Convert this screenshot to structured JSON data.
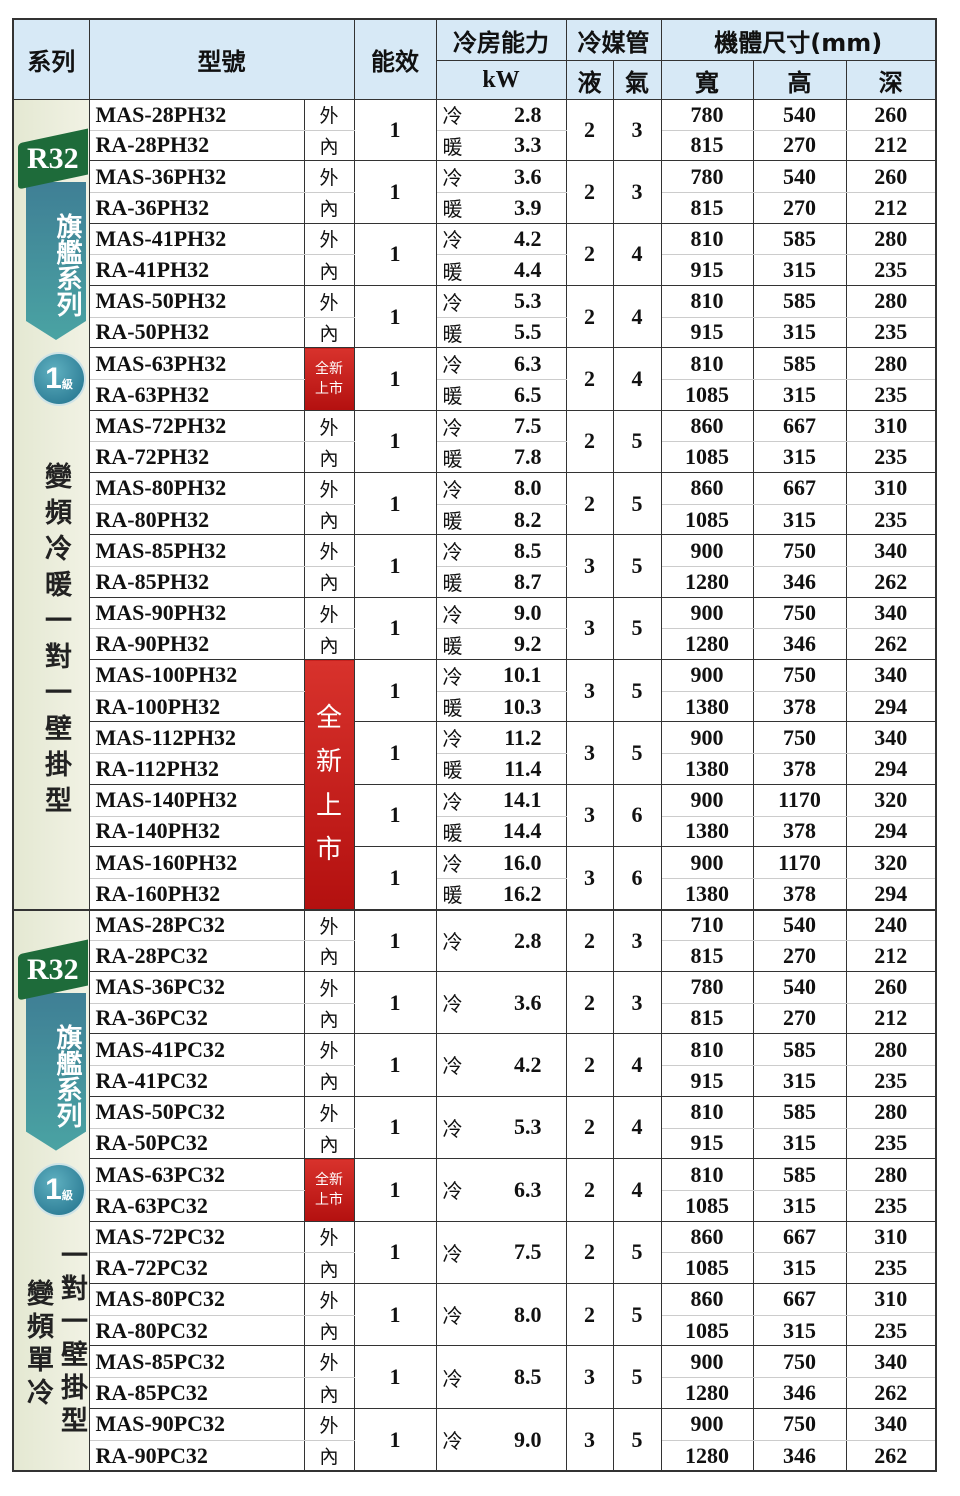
{
  "header": {
    "series": "系列",
    "model": "型號",
    "efficiency": "能效",
    "capacity": "冷房能力",
    "capacity_unit": "kW",
    "pipe": "冷媒管",
    "pipe_liquid": "液",
    "pipe_gas": "氣",
    "dimensions": "機體尺寸(mm)",
    "width": "寬",
    "height": "高",
    "depth": "深"
  },
  "labels": {
    "outdoor": "外",
    "indoor": "內",
    "cool": "冷",
    "heat": "暖",
    "new_badge": "全新上市",
    "new_badge_small": [
      "全新",
      "上市"
    ],
    "new_badge_big": [
      "全",
      "新",
      "上",
      "市"
    ]
  },
  "colors": {
    "header_bg": "#d7e9f6",
    "badge_red": "#c8201c",
    "ribbon_green": "#1e6b3a",
    "banner_teal": "#3f8f9f"
  },
  "sections": [
    {
      "refrigerant": "R32",
      "series_name": "旗艦系列",
      "grade": "1",
      "grade_unit": "級",
      "type_columns": [
        "變頻冷暖一對一壁掛型"
      ],
      "heat_pump": true,
      "rows": [
        {
          "out": "MAS-28PH32",
          "in": "RA-28PH32",
          "eff": "1",
          "cool": "2.8",
          "heat": "3.3",
          "liquid": "2",
          "gas": "3",
          "dim_out": [
            "780",
            "540",
            "260"
          ],
          "dim_in": [
            "815",
            "270",
            "212"
          ]
        },
        {
          "out": "MAS-36PH32",
          "in": "RA-36PH32",
          "eff": "1",
          "cool": "3.6",
          "heat": "3.9",
          "liquid": "2",
          "gas": "3",
          "dim_out": [
            "780",
            "540",
            "260"
          ],
          "dim_in": [
            "815",
            "270",
            "212"
          ]
        },
        {
          "out": "MAS-41PH32",
          "in": "RA-41PH32",
          "eff": "1",
          "cool": "4.2",
          "heat": "4.4",
          "liquid": "2",
          "gas": "4",
          "dim_out": [
            "810",
            "585",
            "280"
          ],
          "dim_in": [
            "915",
            "315",
            "235"
          ]
        },
        {
          "out": "MAS-50PH32",
          "in": "RA-50PH32",
          "eff": "1",
          "cool": "5.3",
          "heat": "5.5",
          "liquid": "2",
          "gas": "4",
          "dim_out": [
            "810",
            "585",
            "280"
          ],
          "dim_in": [
            "915",
            "315",
            "235"
          ]
        },
        {
          "out": "MAS-63PH32",
          "in": "RA-63PH32",
          "eff": "1",
          "cool": "6.3",
          "heat": "6.5",
          "liquid": "2",
          "gas": "4",
          "dim_out": [
            "810",
            "585",
            "280"
          ],
          "dim_in": [
            "1085",
            "315",
            "235"
          ],
          "badge": "small"
        },
        {
          "out": "MAS-72PH32",
          "in": "RA-72PH32",
          "eff": "1",
          "cool": "7.5",
          "heat": "7.8",
          "liquid": "2",
          "gas": "5",
          "dim_out": [
            "860",
            "667",
            "310"
          ],
          "dim_in": [
            "1085",
            "315",
            "235"
          ]
        },
        {
          "out": "MAS-80PH32",
          "in": "RA-80PH32",
          "eff": "1",
          "cool": "8.0",
          "heat": "8.2",
          "liquid": "2",
          "gas": "5",
          "dim_out": [
            "860",
            "667",
            "310"
          ],
          "dim_in": [
            "1085",
            "315",
            "235"
          ]
        },
        {
          "out": "MAS-85PH32",
          "in": "RA-85PH32",
          "eff": "1",
          "cool": "8.5",
          "heat": "8.7",
          "liquid": "3",
          "gas": "5",
          "dim_out": [
            "900",
            "750",
            "340"
          ],
          "dim_in": [
            "1280",
            "346",
            "262"
          ]
        },
        {
          "out": "MAS-90PH32",
          "in": "RA-90PH32",
          "eff": "1",
          "cool": "9.0",
          "heat": "9.2",
          "liquid": "3",
          "gas": "5",
          "dim_out": [
            "900",
            "750",
            "340"
          ],
          "dim_in": [
            "1280",
            "346",
            "262"
          ]
        },
        {
          "out": "MAS-100PH32",
          "in": "RA-100PH32",
          "eff": "1",
          "cool": "10.1",
          "heat": "10.3",
          "liquid": "3",
          "gas": "5",
          "dim_out": [
            "900",
            "750",
            "340"
          ],
          "dim_in": [
            "1380",
            "378",
            "294"
          ],
          "badge": "big",
          "badge_span": 4
        },
        {
          "out": "MAS-112PH32",
          "in": "RA-112PH32",
          "eff": "1",
          "cool": "11.2",
          "heat": "11.4",
          "liquid": "3",
          "gas": "5",
          "dim_out": [
            "900",
            "750",
            "340"
          ],
          "dim_in": [
            "1380",
            "378",
            "294"
          ],
          "badge": "covered"
        },
        {
          "out": "MAS-140PH32",
          "in": "RA-140PH32",
          "eff": "1",
          "cool": "14.1",
          "heat": "14.4",
          "liquid": "3",
          "gas": "6",
          "dim_out": [
            "900",
            "1170",
            "320"
          ],
          "dim_in": [
            "1380",
            "378",
            "294"
          ],
          "badge": "covered"
        },
        {
          "out": "MAS-160PH32",
          "in": "RA-160PH32",
          "eff": "1",
          "cool": "16.0",
          "heat": "16.2",
          "liquid": "3",
          "gas": "6",
          "dim_out": [
            "900",
            "1170",
            "320"
          ],
          "dim_in": [
            "1380",
            "378",
            "294"
          ],
          "badge": "covered"
        }
      ]
    },
    {
      "refrigerant": "R32",
      "series_name": "旗艦系列",
      "grade": "1",
      "grade_unit": "級",
      "type_columns": [
        "一對一壁掛型",
        "變頻單冷"
      ],
      "heat_pump": false,
      "rows": [
        {
          "out": "MAS-28PC32",
          "in": "RA-28PC32",
          "eff": "1",
          "cool": "2.8",
          "liquid": "2",
          "gas": "3",
          "dim_out": [
            "710",
            "540",
            "240"
          ],
          "dim_in": [
            "815",
            "270",
            "212"
          ]
        },
        {
          "out": "MAS-36PC32",
          "in": "RA-36PC32",
          "eff": "1",
          "cool": "3.6",
          "liquid": "2",
          "gas": "3",
          "dim_out": [
            "780",
            "540",
            "260"
          ],
          "dim_in": [
            "815",
            "270",
            "212"
          ]
        },
        {
          "out": "MAS-41PC32",
          "in": "RA-41PC32",
          "eff": "1",
          "cool": "4.2",
          "liquid": "2",
          "gas": "4",
          "dim_out": [
            "810",
            "585",
            "280"
          ],
          "dim_in": [
            "915",
            "315",
            "235"
          ]
        },
        {
          "out": "MAS-50PC32",
          "in": "RA-50PC32",
          "eff": "1",
          "cool": "5.3",
          "liquid": "2",
          "gas": "4",
          "dim_out": [
            "810",
            "585",
            "280"
          ],
          "dim_in": [
            "915",
            "315",
            "235"
          ]
        },
        {
          "out": "MAS-63PC32",
          "in": "RA-63PC32",
          "eff": "1",
          "cool": "6.3",
          "liquid": "2",
          "gas": "4",
          "dim_out": [
            "810",
            "585",
            "280"
          ],
          "dim_in": [
            "1085",
            "315",
            "235"
          ],
          "badge": "small"
        },
        {
          "out": "MAS-72PC32",
          "in": "RA-72PC32",
          "eff": "1",
          "cool": "7.5",
          "liquid": "2",
          "gas": "5",
          "dim_out": [
            "860",
            "667",
            "310"
          ],
          "dim_in": [
            "1085",
            "315",
            "235"
          ]
        },
        {
          "out": "MAS-80PC32",
          "in": "RA-80PC32",
          "eff": "1",
          "cool": "8.0",
          "liquid": "2",
          "gas": "5",
          "dim_out": [
            "860",
            "667",
            "310"
          ],
          "dim_in": [
            "1085",
            "315",
            "235"
          ]
        },
        {
          "out": "MAS-85PC32",
          "in": "RA-85PC32",
          "eff": "1",
          "cool": "8.5",
          "liquid": "3",
          "gas": "5",
          "dim_out": [
            "900",
            "750",
            "340"
          ],
          "dim_in": [
            "1280",
            "346",
            "262"
          ]
        },
        {
          "out": "MAS-90PC32",
          "in": "RA-90PC32",
          "eff": "1",
          "cool": "9.0",
          "liquid": "3",
          "gas": "5",
          "dim_out": [
            "900",
            "750",
            "340"
          ],
          "dim_in": [
            "1280",
            "346",
            "262"
          ]
        }
      ]
    }
  ]
}
